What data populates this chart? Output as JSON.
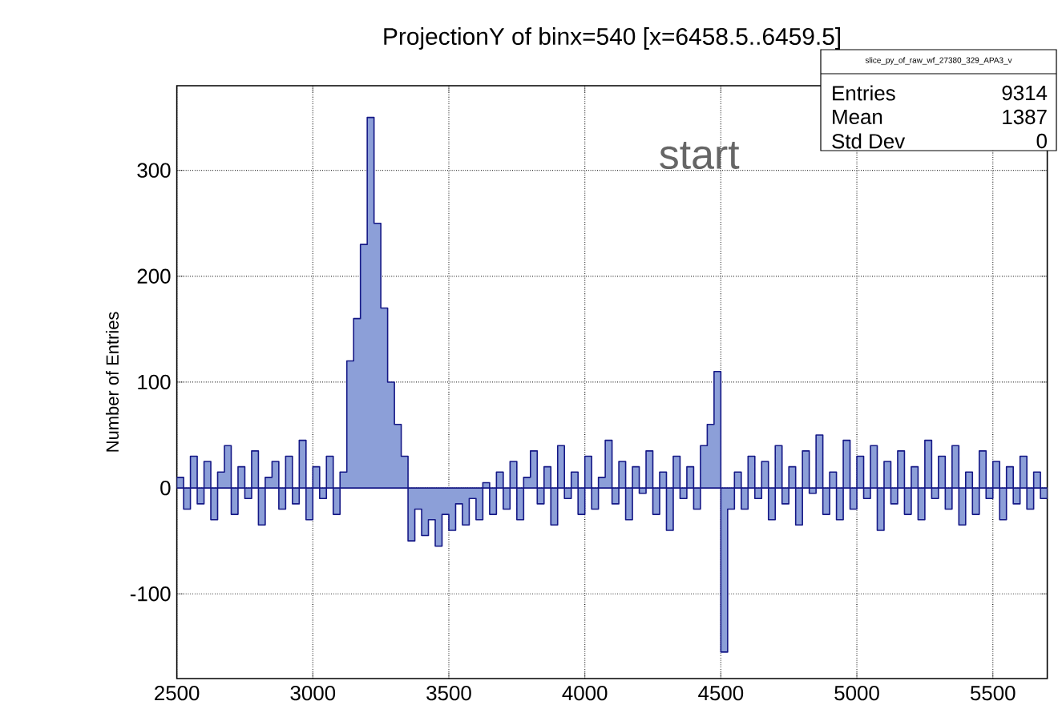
{
  "chart_data": {
    "type": "histogram",
    "title": "ProjectionY of binx=540 [x=6458.5..6459.5]",
    "ylabel": "Number of Entries",
    "bins": [
      2500,
      2525,
      2550,
      2575,
      2600,
      2625,
      2650,
      2675,
      2700,
      2725,
      2750,
      2775,
      2800,
      2825,
      2850,
      2875,
      2900,
      2925,
      2950,
      2975,
      3000,
      3025,
      3050,
      3075,
      3100,
      3125,
      3150,
      3175,
      3200,
      3225,
      3250,
      3275,
      3300,
      3325,
      3350,
      3375,
      3400,
      3425,
      3450,
      3475,
      3500,
      3525,
      3550,
      3575,
      3600,
      3625,
      3650,
      3675,
      3700,
      3725,
      3750,
      3775,
      3800,
      3825,
      3850,
      3875,
      3900,
      3925,
      3950,
      3975,
      4000,
      4025,
      4050,
      4075,
      4100,
      4125,
      4150,
      4175,
      4200,
      4225,
      4250,
      4275,
      4300,
      4325,
      4350,
      4375,
      4400,
      4425,
      4450,
      4475,
      4500,
      4525,
      4550,
      4575,
      4600,
      4625,
      4650,
      4675,
      4700,
      4725,
      4750,
      4775,
      4800,
      4825,
      4850,
      4875,
      4900,
      4925,
      4950,
      4975,
      5000,
      5025,
      5050,
      5075,
      5100,
      5125,
      5150,
      5175,
      5200,
      5225,
      5250,
      5275,
      5300,
      5325,
      5350,
      5375,
      5400,
      5425,
      5450,
      5475,
      5500,
      5525,
      5550,
      5575,
      5600,
      5625,
      5650,
      5675,
      5700
    ],
    "values": [
      10,
      -20,
      30,
      -15,
      25,
      -30,
      15,
      40,
      -25,
      20,
      -10,
      35,
      -35,
      10,
      25,
      -20,
      30,
      -15,
      45,
      -30,
      20,
      -10,
      30,
      -25,
      15,
      120,
      160,
      230,
      350,
      250,
      170,
      100,
      60,
      30,
      -50,
      -20,
      -45,
      -30,
      -55,
      -25,
      -40,
      -15,
      -35,
      -10,
      -30,
      5,
      -25,
      15,
      -20,
      25,
      -30,
      10,
      35,
      -15,
      20,
      -35,
      40,
      -10,
      15,
      -25,
      30,
      -20,
      10,
      45,
      -15,
      25,
      -30,
      20,
      -5,
      35,
      -25,
      15,
      -40,
      30,
      -10,
      20,
      -20,
      40,
      60,
      110,
      -155,
      -20,
      15,
      -20,
      30,
      -10,
      25,
      -30,
      40,
      -15,
      20,
      -35,
      35,
      -5,
      50,
      -25,
      15,
      -30,
      45,
      -20,
      30,
      -10,
      40,
      -40,
      25,
      -15,
      35,
      -25,
      20,
      -30,
      45,
      -10,
      30,
      -20,
      40,
      -35,
      15,
      -25,
      35,
      -10,
      25,
      -30,
      20,
      -15,
      30,
      -20,
      15,
      -10
    ],
    "color": "#8c9fd8",
    "xlim": [
      2500,
      5700
    ],
    "xticks": [
      2500,
      3000,
      3500,
      4000,
      4500,
      5000,
      5500
    ],
    "ylim": [
      -180,
      380
    ],
    "yticks": [
      -100,
      0,
      100,
      200,
      300
    ],
    "grid": true,
    "annotations": [
      "start",
      "slice_py_of_raw_wf_27380_329_APA3_v",
      "Entries",
      "9314",
      "Mean",
      "1387",
      "Std Dev",
      "0"
    ]
  }
}
